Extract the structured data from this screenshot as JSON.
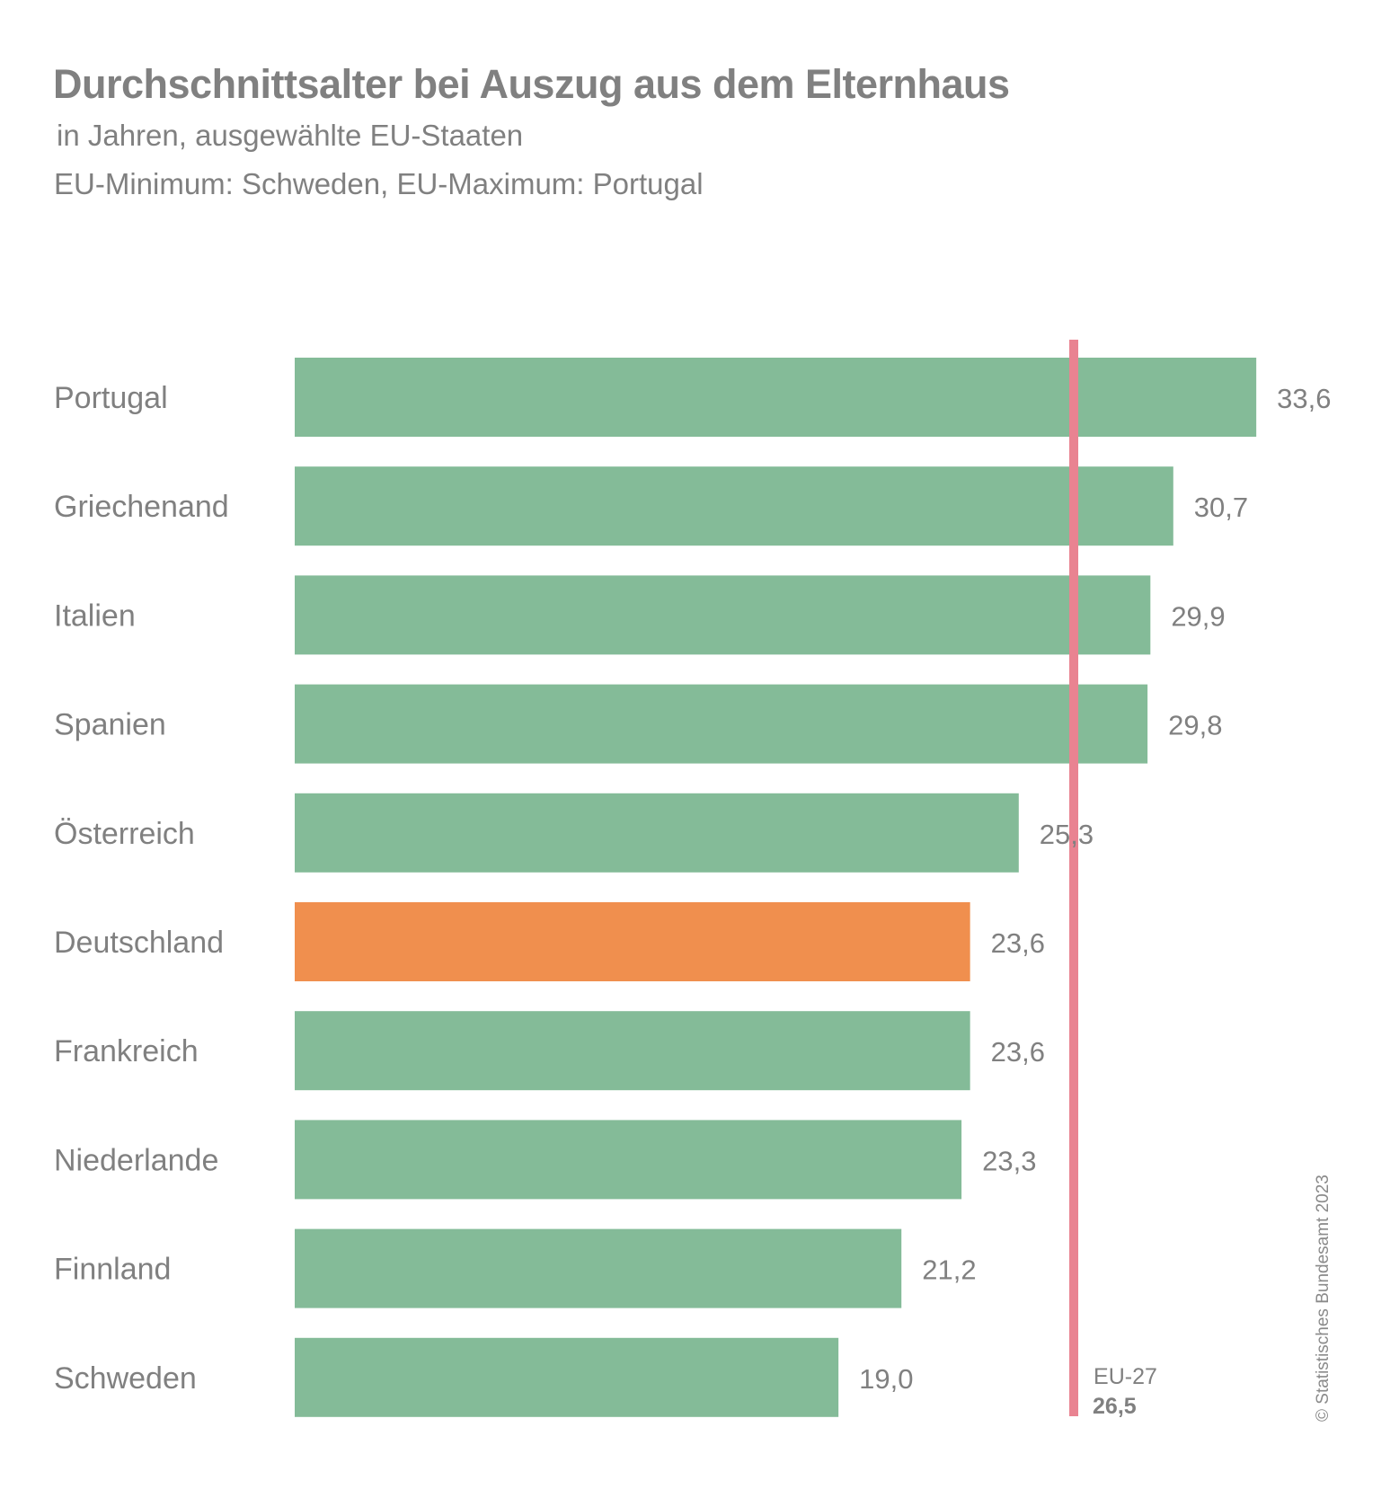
{
  "chart_data": {
    "type": "bar",
    "orientation": "horizontal",
    "title": "Durchschnittsalter bei Auszug aus dem Elternhaus",
    "subtitle": "in Jahren, ausgewählte EU-Staaten",
    "subtitle2": "EU-Minimum: Schweden, EU-Maximum: Portugal",
    "xlabel": "",
    "ylabel": "",
    "xlim": [
      0,
      33.6
    ],
    "grid": false,
    "legend": "none",
    "categories": [
      "Portugal",
      "Griechenand",
      "Italien",
      "Spanien",
      "Österreich",
      "Deutschland",
      "Frankreich",
      "Niederlande",
      "Finnland",
      "Schweden"
    ],
    "values": [
      33.6,
      30.7,
      29.9,
      29.8,
      25.3,
      23.6,
      23.6,
      23.3,
      21.2,
      19.0
    ],
    "value_labels": [
      "33,6",
      "30,7",
      "29,9",
      "29,8",
      "25,3",
      "23,6",
      "23,6",
      "23,3",
      "21,2",
      "19,0"
    ],
    "highlight": "Deutschland",
    "colors": {
      "default": "#84bb98",
      "highlight": "#f08f4e",
      "reference_line": "#e98391",
      "text": "#808080"
    },
    "reference_line": {
      "name": "EU-27",
      "value": 26.5,
      "label": "26,5"
    }
  },
  "credit": "© Statistisches Bundesamt 2023"
}
